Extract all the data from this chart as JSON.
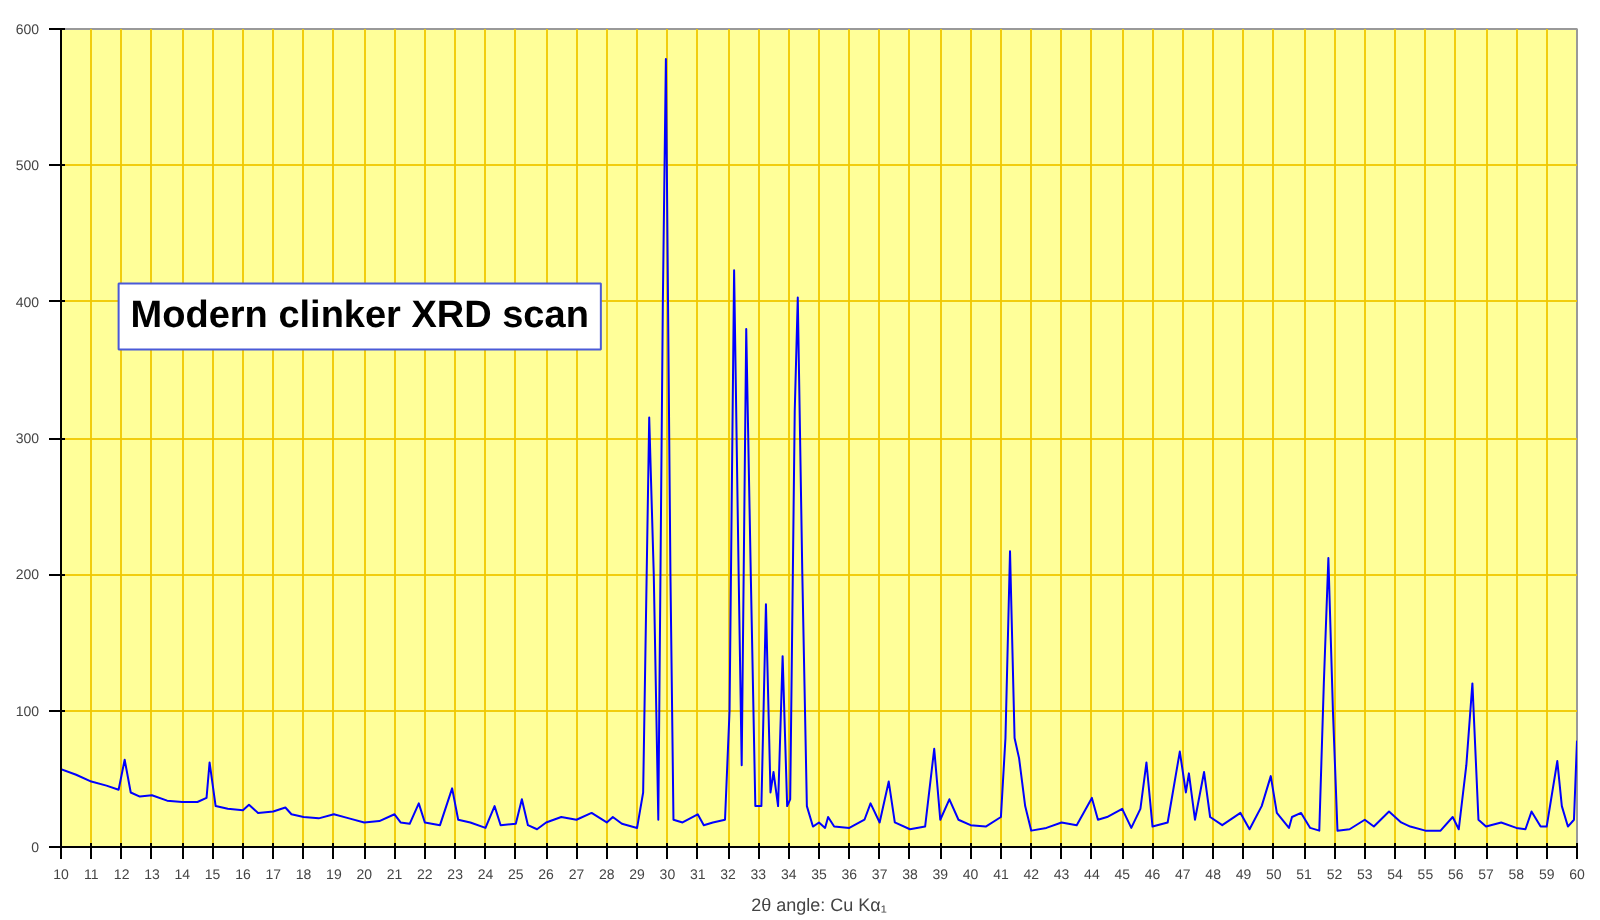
{
  "chart_data": {
    "type": "line",
    "title": "Modern clinker XRD scan",
    "xlabel": "2θ angle: Cu Kα₁",
    "xlim": [
      10,
      60
    ],
    "xticks": [
      10,
      11,
      12,
      13,
      14,
      15,
      16,
      17,
      18,
      19,
      20,
      21,
      22,
      23,
      24,
      25,
      26,
      27,
      28,
      29,
      30,
      31,
      32,
      33,
      34,
      35,
      36,
      37,
      38,
      39,
      40,
      41,
      42,
      43,
      44,
      45,
      46,
      47,
      48,
      49,
      50,
      51,
      52,
      53,
      54,
      55,
      56,
      57,
      58,
      59,
      60
    ],
    "ylim": [
      0,
      600
    ],
    "yticks": [
      0,
      100,
      200,
      300,
      400,
      500,
      600
    ],
    "grid": true,
    "marker": "none",
    "line_style": "solid",
    "series": [
      {
        "color": "#0000ff",
        "x": [
          10,
          10.5,
          11,
          11.5,
          11.9,
          12.1,
          12.3,
          12.6,
          13,
          13.5,
          14,
          14.5,
          14.8,
          14.9,
          15.1,
          15.5,
          16,
          16.2,
          16.5,
          17,
          17.4,
          17.6,
          18,
          18.5,
          19,
          19.5,
          20,
          20.5,
          21,
          21.2,
          21.5,
          21.8,
          22,
          22.5,
          22.9,
          23.1,
          23.5,
          24,
          24.3,
          24.5,
          25,
          25.2,
          25.4,
          25.7,
          26,
          26.5,
          27,
          27.5,
          28,
          28.2,
          28.5,
          29,
          29.2,
          29.4,
          29.55,
          29.7,
          29.85,
          29.95,
          30.1,
          30.2,
          30.5,
          31,
          31.2,
          31.5,
          31.9,
          32.05,
          32.2,
          32.35,
          32.45,
          32.6,
          32.75,
          32.9,
          33.1,
          33.25,
          33.4,
          33.5,
          33.65,
          33.8,
          33.95,
          34.05,
          34.2,
          34.3,
          34.45,
          34.6,
          34.8,
          35,
          35.2,
          35.3,
          35.5,
          36,
          36.5,
          36.7,
          37,
          37.3,
          37.5,
          38,
          38.5,
          38.8,
          39,
          39.3,
          39.6,
          40,
          40.5,
          41,
          41.15,
          41.3,
          41.45,
          41.6,
          41.8,
          42,
          42.5,
          43,
          43.5,
          44,
          44.2,
          44.5,
          45,
          45.3,
          45.6,
          45.8,
          46,
          46.5,
          46.9,
          47.1,
          47.2,
          47.4,
          47.7,
          47.9,
          48.3,
          48.9,
          49.2,
          49.6,
          49.9,
          50.1,
          50.5,
          50.6,
          50.9,
          51.2,
          51.5,
          51.65,
          51.8,
          51.95,
          52.1,
          52.5,
          53,
          53.3,
          53.8,
          54.2,
          54.5,
          55,
          55.5,
          55.9,
          56.1,
          56.35,
          56.55,
          56.75,
          57,
          57.5,
          58,
          58.3,
          58.5,
          58.8,
          59,
          59.35,
          59.5,
          59.7,
          59.9,
          60
        ],
        "values": [
          57,
          53,
          48,
          45,
          42,
          64,
          40,
          37,
          38,
          34,
          33,
          33,
          36,
          62,
          30,
          28,
          27,
          31,
          25,
          26,
          29,
          24,
          22,
          21,
          24,
          21,
          18,
          19,
          24,
          18,
          17,
          32,
          18,
          16,
          43,
          20,
          18,
          14,
          30,
          16,
          17,
          35,
          16,
          13,
          18,
          22,
          20,
          25,
          18,
          22,
          17,
          14,
          40,
          315,
          200,
          20,
          400,
          578,
          200,
          20,
          18,
          24,
          16,
          18,
          20,
          100,
          423,
          200,
          60,
          380,
          200,
          30,
          30,
          178,
          40,
          55,
          30,
          140,
          30,
          35,
          320,
          403,
          200,
          30,
          15,
          18,
          14,
          22,
          15,
          14,
          20,
          32,
          18,
          48,
          18,
          13,
          15,
          72,
          20,
          35,
          20,
          16,
          15,
          22,
          80,
          217,
          80,
          65,
          30,
          12,
          14,
          18,
          16,
          36,
          20,
          22,
          28,
          14,
          28,
          62,
          15,
          18,
          70,
          40,
          54,
          20,
          55,
          22,
          16,
          25,
          13,
          30,
          52,
          25,
          14,
          22,
          25,
          14,
          12,
          120,
          212,
          100,
          12,
          13,
          20,
          15,
          26,
          18,
          15,
          12,
          12,
          22,
          13,
          60,
          120,
          20,
          15,
          18,
          14,
          13,
          26,
          15,
          15,
          63,
          30,
          15,
          20,
          78
        ]
      }
    ]
  }
}
